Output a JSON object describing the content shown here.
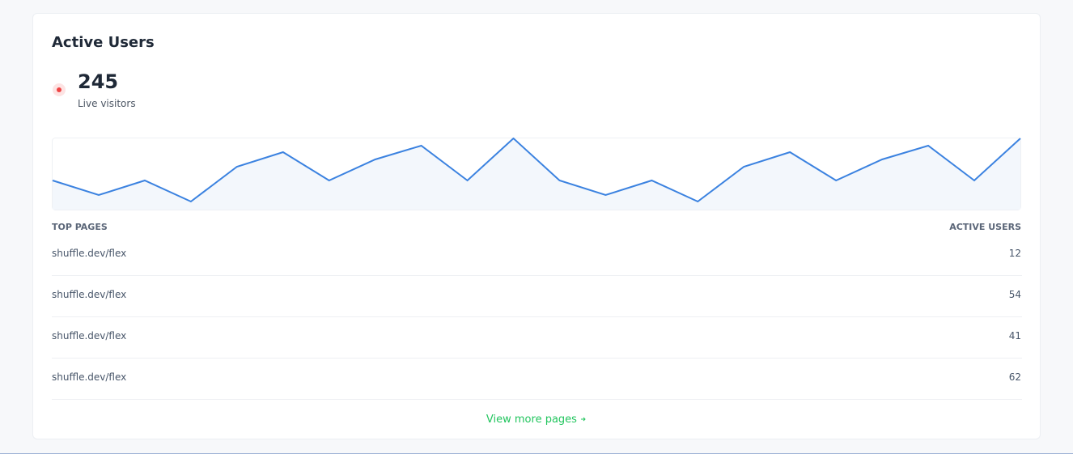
{
  "header": {
    "title": "Active Users"
  },
  "live": {
    "count": "245",
    "label": "Live visitors"
  },
  "chart_data": {
    "type": "line",
    "values": [
      36,
      18,
      36,
      10,
      53,
      71,
      36,
      62,
      79,
      36,
      88,
      36,
      18,
      36,
      10,
      53,
      71,
      36,
      62,
      79,
      36,
      88
    ],
    "ylim": [
      0,
      88
    ],
    "color": "#3b82e0",
    "fill": "#f3f7fc"
  },
  "table": {
    "columns": [
      "TOP PAGES",
      "ACTIVE USERS"
    ],
    "rows": [
      [
        "shuffle.dev/flex",
        12
      ],
      [
        "shuffle.dev/flex",
        54
      ],
      [
        "shuffle.dev/flex",
        41
      ],
      [
        "shuffle.dev/flex",
        62
      ]
    ]
  },
  "footer": {
    "link": "View more pages"
  }
}
